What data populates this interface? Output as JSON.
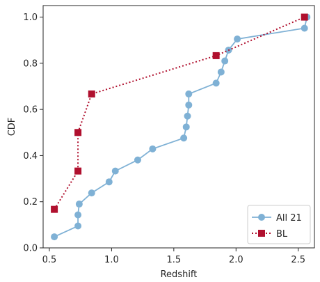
{
  "chart_data": {
    "type": "line",
    "title": "",
    "xlabel": "Redshift",
    "ylabel": "CDF",
    "xlim": [
      0.45,
      2.63
    ],
    "ylim": [
      0.0,
      1.05
    ],
    "xticks": [
      0.5,
      1.0,
      1.5,
      2.0,
      2.5
    ],
    "xtick_labels": [
      "0.5",
      "1.0",
      "1.5",
      "2.0",
      "2.5"
    ],
    "yticks": [
      0.0,
      0.2,
      0.4,
      0.6,
      0.8,
      1.0
    ],
    "ytick_labels": [
      "0.0",
      "0.2",
      "0.4",
      "0.6",
      "0.8",
      "1.0"
    ],
    "grid": false,
    "legend_position": "bottom-right",
    "series": [
      {
        "name": "All 21",
        "color": "#7fb1d5",
        "line_style": "solid",
        "marker": "circle",
        "x": [
          0.54,
          0.73,
          0.73,
          0.74,
          0.84,
          0.98,
          1.03,
          1.21,
          1.33,
          1.58,
          1.6,
          1.61,
          1.62,
          1.62,
          1.84,
          1.88,
          1.91,
          1.94,
          2.01,
          2.55,
          2.57
        ],
        "y": [
          0.048,
          0.095,
          0.143,
          0.19,
          0.238,
          0.286,
          0.333,
          0.381,
          0.429,
          0.476,
          0.524,
          0.571,
          0.619,
          0.667,
          0.714,
          0.762,
          0.81,
          0.857,
          0.905,
          0.952,
          1.0
        ]
      },
      {
        "name": "BL",
        "color": "#b0102e",
        "line_style": "dotted",
        "marker": "square",
        "x": [
          0.54,
          0.73,
          0.73,
          0.84,
          1.84,
          2.55
        ],
        "y": [
          0.167,
          0.333,
          0.5,
          0.667,
          0.833,
          1.0
        ]
      }
    ]
  }
}
